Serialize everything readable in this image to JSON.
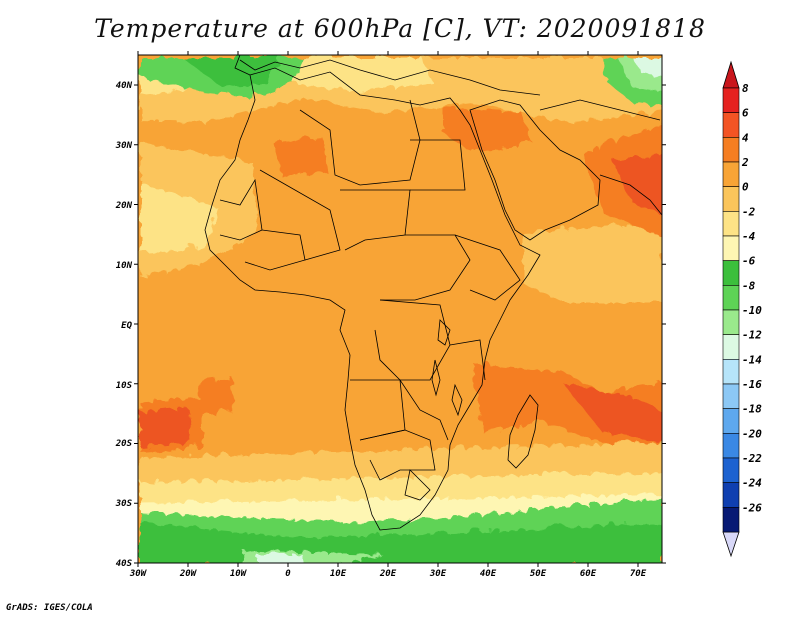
{
  "title": "Temperature at 600hPa [C], VT: 2020091818",
  "footer": "GrADS: IGES/COLA",
  "colors": {
    "ocean_warm": "#f8a436",
    "land": "#f6ae4f",
    "hot": "#f47a22",
    "hotter": "#ed5420",
    "mild": "#fcc66c",
    "cool": "#fde28b",
    "pale": "#fef3b0",
    "green": "#5ed356",
    "green_dark": "#3cbf3c",
    "border": "#000000"
  },
  "map": {
    "lat_labels": [
      "40N",
      "30N",
      "20N",
      "10N",
      "EQ",
      "10S",
      "20S",
      "30S",
      "40S"
    ],
    "lon_labels": [
      "30W",
      "20W",
      "10W",
      "0",
      "10E",
      "20E",
      "30E",
      "40E",
      "50E",
      "60E",
      "70E"
    ]
  },
  "colorbar": {
    "labels": [
      "8",
      "6",
      "4",
      "2",
      "0",
      "-2",
      "-4",
      "-6",
      "-8",
      "-10",
      "-12",
      "-14",
      "-16",
      "-18",
      "-20",
      "-22",
      "-24",
      "-26"
    ],
    "colors": [
      "#e5221f",
      "#f35424",
      "#f57e22",
      "#f8a436",
      "#fbc55b",
      "#fde386",
      "#fef6b3",
      "#3cbf3c",
      "#5ed356",
      "#9ae98c",
      "#dcf9e3",
      "#b6e4f9",
      "#8cc8f5",
      "#5ea8ee",
      "#3a88e4",
      "#1d62d0",
      "#0f3fb0",
      "#071a74"
    ]
  }
}
